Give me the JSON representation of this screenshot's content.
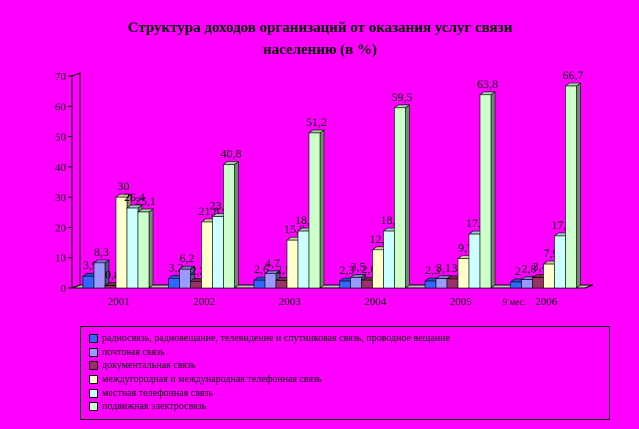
{
  "title_line1": "Структура доходов организаций от оказания услуг связи",
  "title_line2": "населению (в %)",
  "chart_data": {
    "type": "bar",
    "title": "Структура доходов организаций от оказания услуг связи населению (в %)",
    "categories": [
      "2001",
      "2002",
      "2003",
      "2004",
      "2005",
      "2006"
    ],
    "category_note": "9 мес.",
    "ylim": [
      0,
      70
    ],
    "yticks": [
      0,
      10,
      20,
      30,
      40,
      50,
      60,
      70
    ],
    "grid": false,
    "legend_position": "bottom",
    "series": [
      {
        "name": "радиосвязь, радиовещание, телевидение и спутниковая связь, проводное вещание",
        "color": "#3366ff",
        "values": [
          3.9,
          3.2,
          2.6,
          2.3,
          2.3,
          2.0
        ]
      },
      {
        "name": "почтовая связь",
        "color": "#9999ff",
        "values": [
          8.3,
          6.2,
          4.7,
          3.5,
          3.1,
          2.8
        ]
      },
      {
        "name": "документальная связь",
        "color": "#993366",
        "values": [
          0.8,
          2.2,
          2.5,
          2.6,
          3.0,
          3.4
        ]
      },
      {
        "name": "междугородная и международная телефонная связь",
        "color": "#ffffcc",
        "values": [
          30.0,
          21.8,
          15.8,
          12.6,
          9.7,
          7.9
        ]
      },
      {
        "name": "местная телефонная связь",
        "color": "#ccffff",
        "values": [
          26.4,
          23.6,
          18.8,
          18.8,
          17.8,
          17.2
        ]
      },
      {
        "name": "подвижная электросвязь",
        "color": "#ccffcc",
        "values": [
          25.1,
          40.8,
          51.2,
          59.5,
          63.8,
          66.7
        ]
      }
    ],
    "data_labels": [
      [
        "3,9",
        "8,3",
        "0,8",
        "30",
        "26,4",
        "25,1"
      ],
      [
        "3,2",
        "6,2",
        "2,2",
        "21,8",
        "23,6",
        "40,8"
      ],
      [
        "2,6",
        "4,7",
        "2,5",
        "15,8",
        "18,8",
        "51,2"
      ],
      [
        "2,3",
        "3,5",
        "2,6",
        "12,6",
        "18,8",
        "59,5"
      ],
      [
        "2,3",
        "3,1",
        "3",
        "9,7",
        "17,8",
        "63,8"
      ],
      [
        "2",
        "2,8",
        "3,4",
        "7,9",
        "17,2",
        "66,7"
      ]
    ]
  }
}
